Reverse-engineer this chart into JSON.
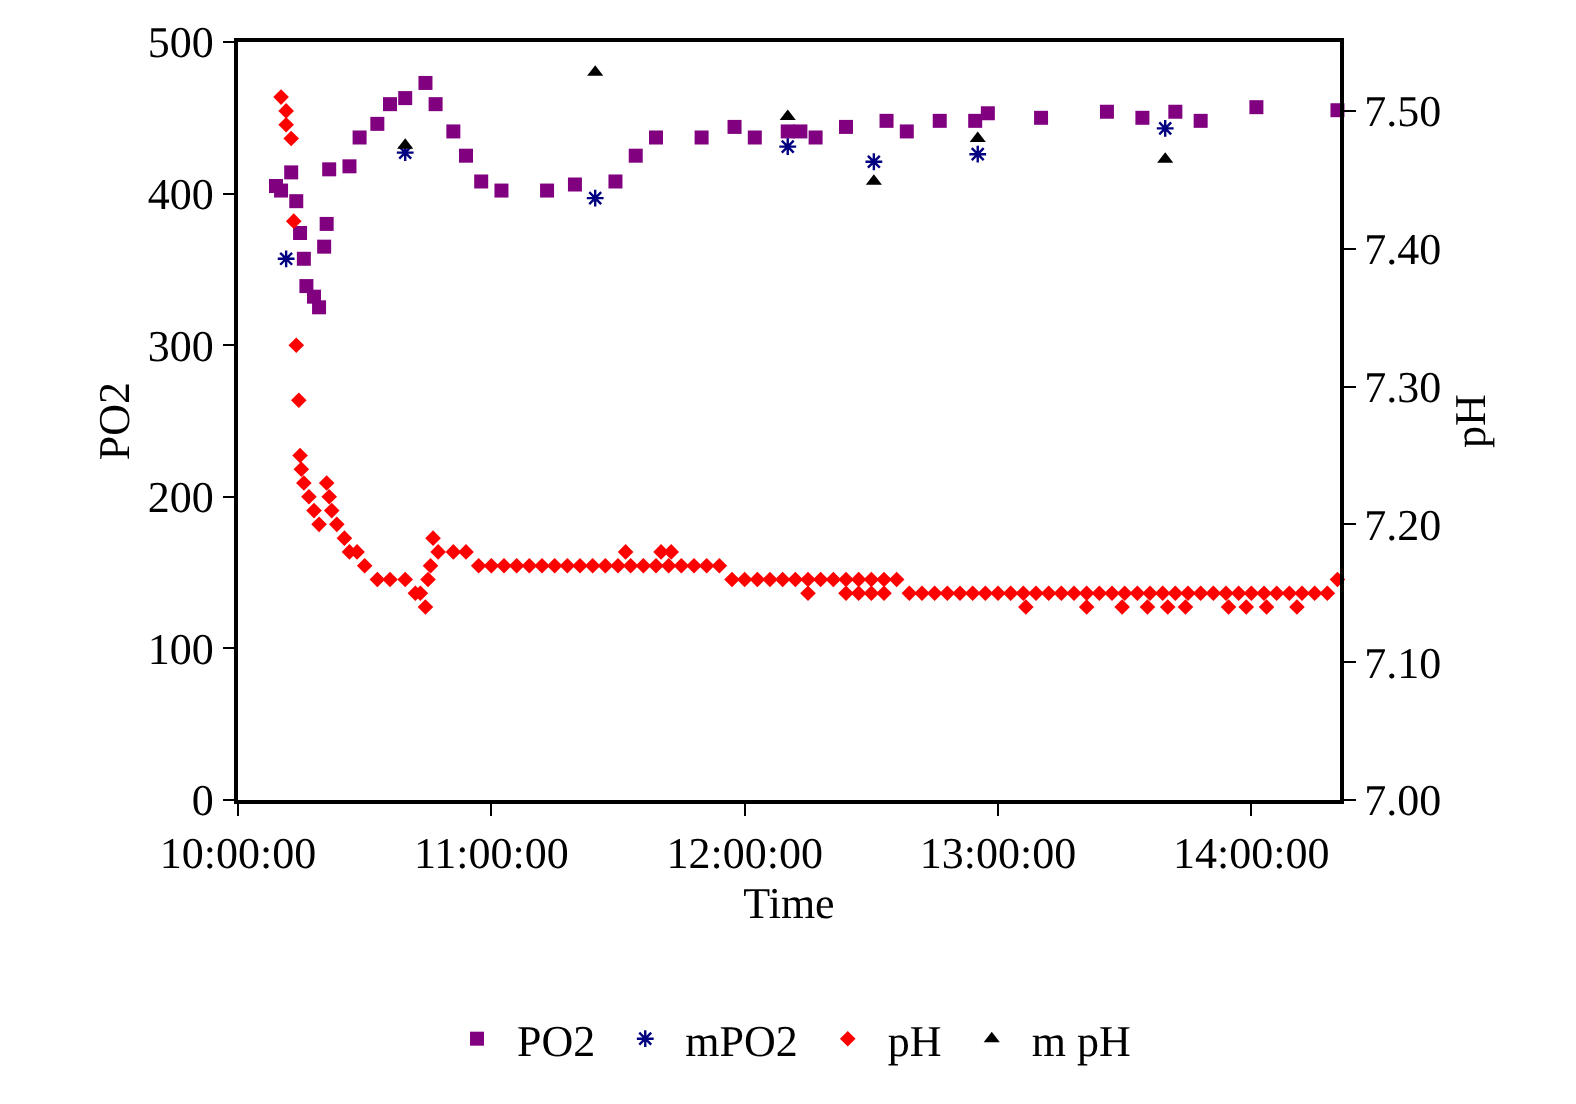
{
  "chart_data": {
    "type": "scatter",
    "xlabel": "Time",
    "ylabel": "PO2",
    "y2label": "pH",
    "xlim": [
      10,
      14.35
    ],
    "xticks": [
      {
        "value": 10,
        "label": "10:00:00"
      },
      {
        "value": 11,
        "label": "11:00:00"
      },
      {
        "value": 12,
        "label": "12:00:00"
      },
      {
        "value": 13,
        "label": "13:00:00"
      },
      {
        "value": 14,
        "label": "14:00:00"
      }
    ],
    "ylim": [
      0,
      500
    ],
    "yticks": [
      0,
      100,
      200,
      300,
      400,
      500
    ],
    "y2lim": [
      7,
      7.55
    ],
    "y2ticks": [
      {
        "value": 7,
        "label": "7.00"
      },
      {
        "value": 7.1,
        "label": "7.10"
      },
      {
        "value": 7.2,
        "label": "7.20"
      },
      {
        "value": 7.3,
        "label": "7.30"
      },
      {
        "value": 7.4,
        "label": "7.40"
      },
      {
        "value": 7.5,
        "label": "7.50"
      }
    ],
    "grid": false,
    "legend": "bottom",
    "series": [
      {
        "name": "PO2",
        "color": "#800080",
        "marker": "square",
        "x": [
          10.15,
          10.17,
          10.21,
          10.23,
          10.245,
          10.26,
          10.27,
          10.3,
          10.32,
          10.34,
          10.35,
          10.36,
          10.44,
          10.48,
          10.55,
          10.6,
          10.66,
          10.74,
          10.78,
          10.85,
          10.9,
          10.96,
          11.04,
          11.22,
          11.33,
          11.49,
          11.57,
          11.65,
          11.83,
          11.96,
          12.04,
          12.17,
          12.22,
          12.28,
          12.4,
          12.56,
          12.64,
          12.77,
          12.91,
          12.96,
          13.17,
          13.43,
          13.57,
          13.7,
          13.8,
          14.02,
          14.34
        ],
        "values": [
          405,
          402,
          414,
          395,
          374,
          357,
          339,
          332,
          325,
          365,
          380,
          416,
          418,
          437,
          446,
          459,
          463,
          473,
          459,
          441,
          425,
          408,
          402,
          402,
          406,
          408,
          425,
          437,
          437,
          444,
          437,
          441,
          441,
          437,
          444,
          448,
          441,
          448,
          448,
          453,
          450,
          454,
          450,
          454,
          448,
          457,
          455
        ]
      },
      {
        "name": "mPO2",
        "color": "#000080",
        "marker": "cross",
        "x": [
          10.19,
          10.66,
          11.41,
          12.17,
          12.51,
          12.92,
          13.66
        ],
        "values": [
          357,
          427,
          397,
          431,
          421,
          426,
          443
        ]
      },
      {
        "name": "pH",
        "color": "#ff0000",
        "marker": "diamond",
        "axis": "y2",
        "x": [
          10.17,
          10.19,
          10.19,
          10.21,
          10.22,
          10.23,
          10.24,
          10.245,
          10.25,
          10.26,
          10.28,
          10.3,
          10.32,
          10.35,
          10.36,
          10.37,
          10.39,
          10.42,
          10.44,
          10.47,
          10.5,
          10.55,
          10.6,
          10.66,
          10.7,
          10.72,
          10.74,
          10.75,
          10.76,
          10.77,
          10.79,
          10.85,
          10.9,
          10.95,
          11,
          11.05,
          11.1,
          11.15,
          11.2,
          11.25,
          11.3,
          11.35,
          11.4,
          11.45,
          11.5,
          11.53,
          11.55,
          11.6,
          11.65,
          11.67,
          11.7,
          11.71,
          11.75,
          11.8,
          11.85,
          11.9,
          11.95,
          12,
          12.05,
          12.1,
          12.15,
          12.2,
          12.25,
          12.25,
          12.3,
          12.35,
          12.4,
          12.4,
          12.45,
          12.45,
          12.5,
          12.5,
          12.55,
          12.55,
          12.6,
          12.65,
          12.7,
          12.75,
          12.8,
          12.85,
          12.9,
          12.95,
          13,
          13.05,
          13.11,
          13.1,
          13.15,
          13.2,
          13.25,
          13.3,
          13.35,
          13.35,
          13.4,
          13.45,
          13.49,
          13.5,
          13.55,
          13.59,
          13.6,
          13.65,
          13.67,
          13.7,
          13.74,
          13.75,
          13.8,
          13.85,
          13.91,
          13.9,
          13.95,
          13.98,
          14,
          14.05,
          14.06,
          14.1,
          14.15,
          14.18,
          14.2,
          14.25,
          14.3,
          14.34
        ],
        "values": [
          7.51,
          7.5,
          7.49,
          7.48,
          7.42,
          7.33,
          7.29,
          7.25,
          7.24,
          7.23,
          7.22,
          7.21,
          7.2,
          7.23,
          7.22,
          7.21,
          7.2,
          7.19,
          7.18,
          7.18,
          7.17,
          7.16,
          7.16,
          7.16,
          7.15,
          7.15,
          7.14,
          7.16,
          7.17,
          7.19,
          7.18,
          7.18,
          7.18,
          7.17,
          7.17,
          7.17,
          7.17,
          7.17,
          7.17,
          7.17,
          7.17,
          7.17,
          7.17,
          7.17,
          7.17,
          7.18,
          7.17,
          7.17,
          7.17,
          7.18,
          7.17,
          7.18,
          7.17,
          7.17,
          7.17,
          7.17,
          7.16,
          7.16,
          7.16,
          7.16,
          7.16,
          7.16,
          7.16,
          7.15,
          7.16,
          7.16,
          7.16,
          7.15,
          7.16,
          7.15,
          7.16,
          7.15,
          7.16,
          7.15,
          7.16,
          7.15,
          7.15,
          7.15,
          7.15,
          7.15,
          7.15,
          7.15,
          7.15,
          7.15,
          7.14,
          7.15,
          7.15,
          7.15,
          7.15,
          7.15,
          7.15,
          7.14,
          7.15,
          7.15,
          7.14,
          7.15,
          7.15,
          7.14,
          7.15,
          7.15,
          7.14,
          7.15,
          7.14,
          7.15,
          7.15,
          7.15,
          7.14,
          7.15,
          7.15,
          7.14,
          7.15,
          7.15,
          7.14,
          7.15,
          7.15,
          7.14,
          7.15,
          7.15,
          7.15,
          7.16
        ]
      },
      {
        "name": "m pH",
        "color": "#000000",
        "marker": "triangle",
        "axis": "y2",
        "x": [
          10.66,
          11.41,
          12.17,
          12.51,
          12.92,
          13.66
        ],
        "values": [
          7.475,
          7.528,
          7.496,
          7.449,
          7.48,
          7.465
        ]
      }
    ]
  }
}
